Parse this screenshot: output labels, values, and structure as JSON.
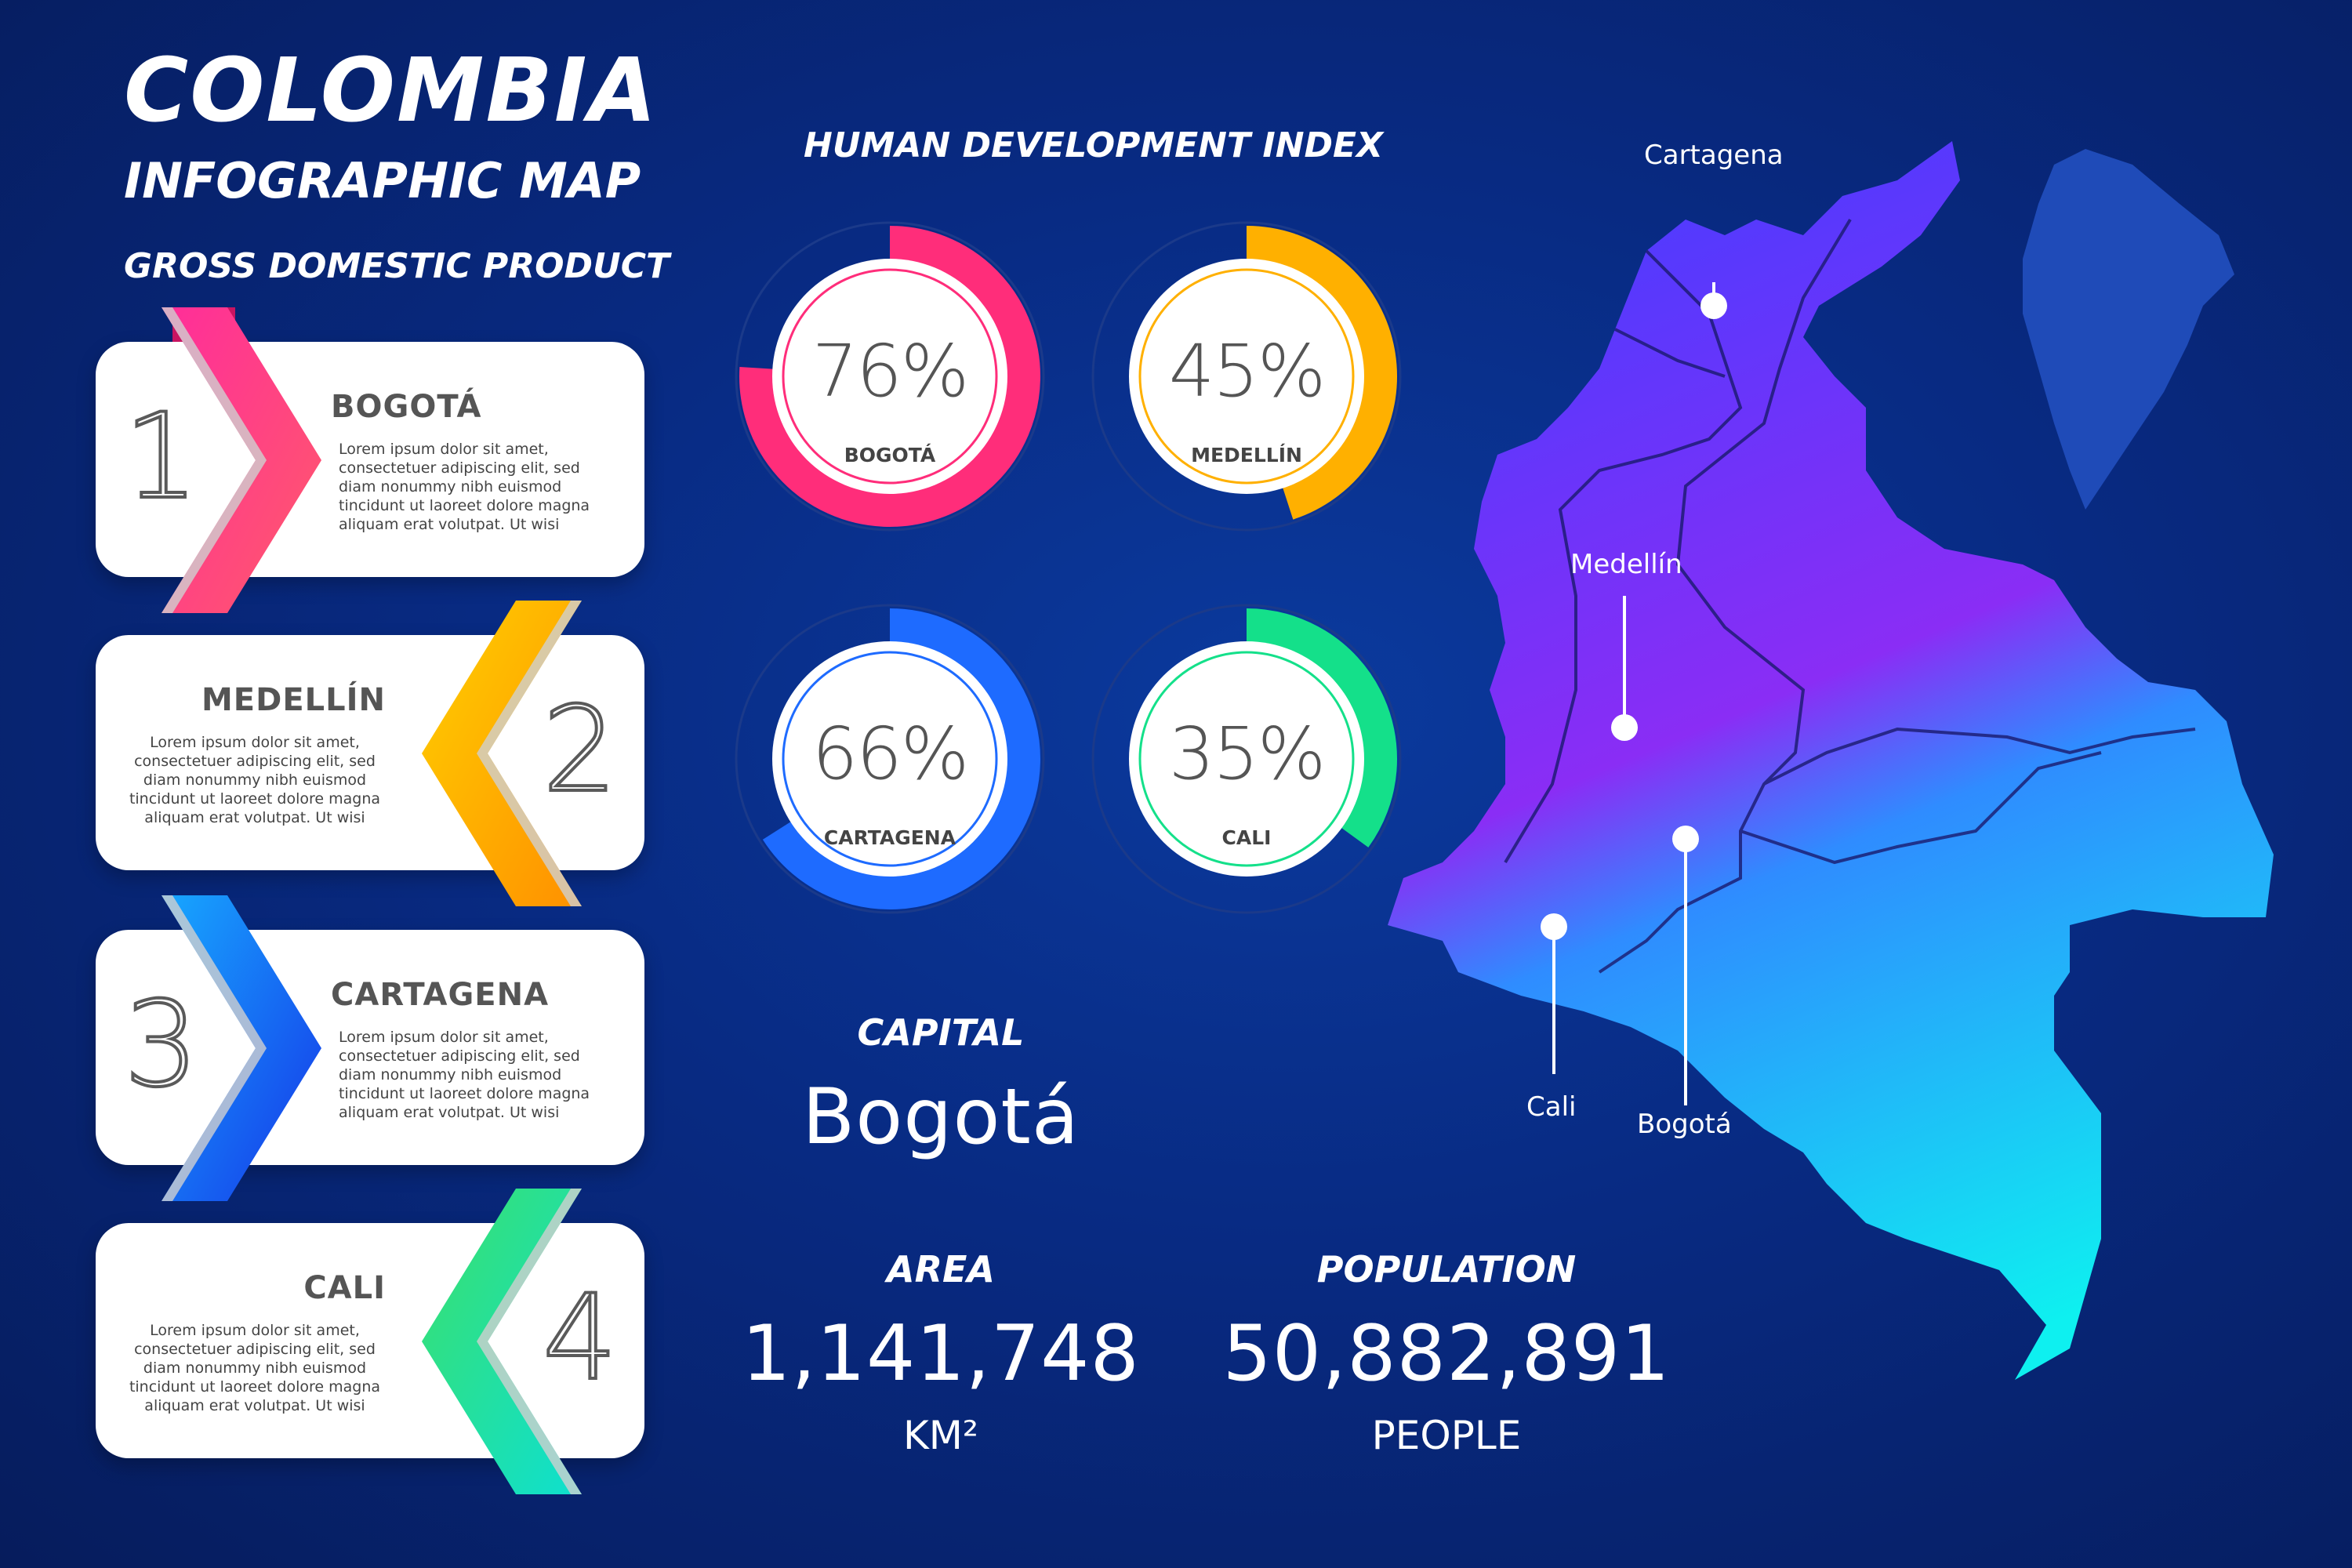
{
  "header": {
    "title": "COLOMBIA",
    "subtitle": "INFOGRAPHIC MAP",
    "section": "GROSS DOMESTIC PRODUCT"
  },
  "gdp_cards": [
    {
      "number": "1",
      "name": "BOGOTÁ",
      "text": "Lorem ipsum dolor sit amet, consectetuer adipiscing elit, sed diam nonummy nibh euismod tincidunt ut laoreet dolore magna aliquam erat volutpat. Ut wisi",
      "color": "#ff2d7a"
    },
    {
      "number": "2",
      "name": "MEDELLÍN",
      "text": "Lorem ipsum dolor sit amet, consectetuer adipiscing elit, sed diam nonummy nibh euismod tincidunt ut laoreet dolore magna aliquam erat volutpat. Ut wisi",
      "color": "#ffb000"
    },
    {
      "number": "3",
      "name": "CARTAGENA",
      "text": "Lorem ipsum dolor sit amet, consectetuer adipiscing elit, sed diam nonummy nibh euismod tincidunt ut laoreet dolore magna aliquam erat volutpat. Ut wisi",
      "color": "#1e6bff"
    },
    {
      "number": "4",
      "name": "CALI",
      "text": "Lorem ipsum dolor sit amet, consectetuer adipiscing elit, sed diam nonummy nibh euismod tincidunt ut laoreet dolore magna aliquam erat volutpat. Ut wisi",
      "color": "#14e08a"
    }
  ],
  "hdi": {
    "title": "HUMAN DEVELOPMENT INDEX",
    "items": [
      {
        "value": "76%",
        "fraction": 0.76,
        "label": "BOGOTÁ",
        "color": "#ff2d7a"
      },
      {
        "value": "45%",
        "fraction": 0.45,
        "label": "MEDELLÍN",
        "color": "#ffb000"
      },
      {
        "value": "66%",
        "fraction": 0.66,
        "label": "CARTAGENA",
        "color": "#1e6bff"
      },
      {
        "value": "35%",
        "fraction": 0.35,
        "label": "CALI",
        "color": "#14e08a"
      }
    ]
  },
  "stats": {
    "capital_label": "CAPITAL",
    "capital_value": "Bogotá",
    "area_label": "AREA",
    "area_value": "1,141,748",
    "area_unit": "KM²",
    "population_label": "POPULATION",
    "population_value": "50,882,891",
    "population_unit": "PEOPLE"
  },
  "map": {
    "cities": [
      "Cartagena",
      "Medellín",
      "Cali",
      "Bogotá"
    ]
  }
}
